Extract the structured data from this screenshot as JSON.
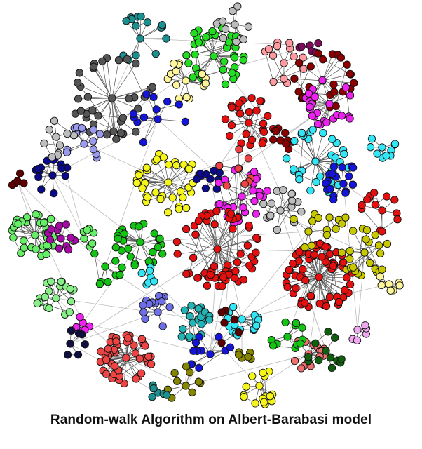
{
  "caption": "Random-walk Algorithm on Albert-Barabasi model",
  "communities": [
    {
      "name": "teal",
      "color": "#1c8f8f"
    },
    {
      "name": "bright-green",
      "color": "#22dd22"
    },
    {
      "name": "light-gray",
      "color": "#bdbdbd"
    },
    {
      "name": "dark-gray",
      "color": "#555555"
    },
    {
      "name": "pink",
      "color": "#ff9aa0"
    },
    {
      "name": "purple",
      "color": "#7d0d5a"
    },
    {
      "name": "dark-red",
      "color": "#8b0000"
    },
    {
      "name": "magenta",
      "color": "#ee22ee"
    },
    {
      "name": "pale-yellow",
      "color": "#fff59a"
    },
    {
      "name": "red",
      "color": "#e41010"
    },
    {
      "name": "navy",
      "color": "#0a0a8a"
    },
    {
      "name": "cyan",
      "color": "#33e6f5"
    },
    {
      "name": "blue",
      "color": "#1515d9"
    },
    {
      "name": "lavender",
      "color": "#9a9aee"
    },
    {
      "name": "maroon",
      "color": "#5e0000"
    },
    {
      "name": "yellow",
      "color": "#f5f51a"
    },
    {
      "name": "green",
      "color": "#14c414"
    },
    {
      "name": "light-green",
      "color": "#66ee66"
    },
    {
      "name": "olive",
      "color": "#c8c800"
    },
    {
      "name": "violet",
      "color": "#a50aa5"
    },
    {
      "name": "soft-green",
      "color": "#88ee88"
    },
    {
      "name": "medium-slate",
      "color": "#6e6ee6"
    },
    {
      "name": "aqua-teal",
      "color": "#23b5b5"
    },
    {
      "name": "coral-red",
      "color": "#ee4444"
    },
    {
      "name": "salmon",
      "color": "#f07070"
    },
    {
      "name": "dark-green",
      "color": "#0f5f0f"
    },
    {
      "name": "dark-olive",
      "color": "#858500"
    },
    {
      "name": "light-pink",
      "color": "#f0a8f0"
    },
    {
      "name": "midnight",
      "color": "#101040"
    }
  ]
}
